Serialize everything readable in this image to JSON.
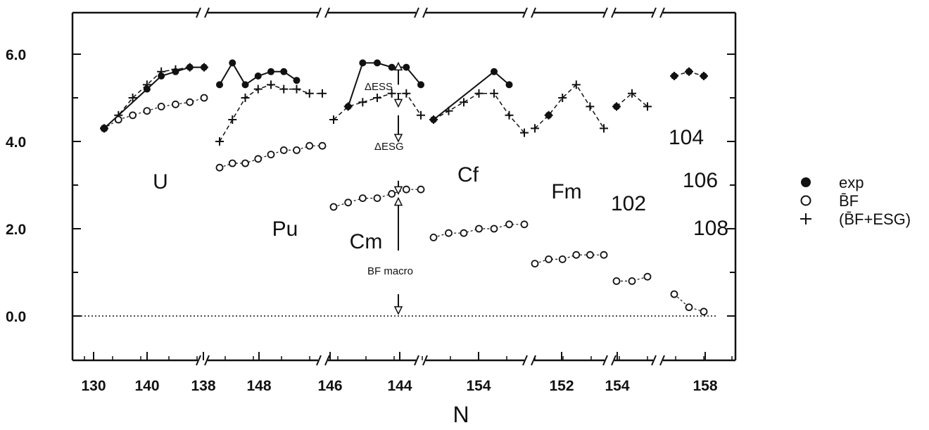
{
  "chart_data": {
    "type": "scatter",
    "title": "",
    "xlabel": "N",
    "ylabel": "",
    "ylim": [
      -1,
      7
    ],
    "y_ticks": [
      "0.0",
      "2.0",
      "4.0",
      "6.0"
    ],
    "x_tick_labels": [
      "130",
      "140",
      "138",
      "148",
      "146",
      "144",
      "154",
      "152",
      "154",
      "158"
    ],
    "legend": [
      {
        "marker": "filled-circle",
        "label": "exp"
      },
      {
        "marker": "open-circle",
        "label": "B̄F"
      },
      {
        "marker": "plus",
        "label": "(B̄F+ESG)"
      }
    ],
    "legend_position": "right",
    "element_labels": [
      "U",
      "Pu",
      "Cm",
      "Cf",
      "Fm",
      "102",
      "104",
      "106",
      "108"
    ],
    "annotations": [
      "ΔESS",
      "ΔESG",
      "BF macro"
    ],
    "reference_line": 0.0,
    "groups": [
      {
        "element": "U",
        "N": [
          134,
          136,
          138,
          140,
          142,
          144,
          146,
          148
        ],
        "exp": [
          4.3,
          null,
          null,
          5.2,
          5.5,
          5.6,
          5.7,
          5.7
        ],
        "BF": [
          4.3,
          4.5,
          4.6,
          4.7,
          4.8,
          4.85,
          4.9,
          5.0
        ],
        "BF_ESG": [
          4.3,
          4.6,
          5.0,
          5.3,
          5.6,
          5.65,
          5.7,
          5.7
        ]
      },
      {
        "element": "Pu",
        "N": [
          138,
          140,
          142,
          144,
          146,
          148,
          150,
          152,
          154
        ],
        "exp": [
          5.3,
          5.8,
          5.3,
          5.5,
          5.6,
          5.6,
          5.4,
          null,
          null
        ],
        "BF": [
          3.4,
          3.5,
          3.5,
          3.6,
          3.7,
          3.8,
          3.8,
          3.9,
          3.9
        ],
        "BF_ESG": [
          4.0,
          4.5,
          5.0,
          5.2,
          5.3,
          5.2,
          5.2,
          5.1,
          5.1
        ]
      },
      {
        "element": "Cm",
        "N": [
          142,
          144,
          146,
          148,
          150,
          152,
          154
        ],
        "exp": [
          null,
          4.8,
          5.8,
          5.8,
          5.7,
          5.7,
          5.3
        ],
        "BF": [
          2.5,
          2.6,
          2.7,
          2.7,
          2.8,
          2.9,
          2.9
        ],
        "BF_ESG": [
          4.5,
          4.8,
          4.9,
          5.0,
          5.1,
          5.1,
          4.6
        ]
      },
      {
        "element": "Cf",
        "N": [
          144,
          146,
          148,
          150,
          152,
          154,
          156
        ],
        "exp": [
          4.5,
          null,
          null,
          null,
          5.6,
          5.3,
          null
        ],
        "BF": [
          1.8,
          1.9,
          1.9,
          2.0,
          2.0,
          2.1,
          2.1
        ],
        "BF_ESG": [
          4.5,
          4.7,
          4.9,
          5.1,
          5.1,
          4.6,
          4.2
        ]
      },
      {
        "element": "Fm",
        "N": [
          148,
          150,
          152,
          154,
          156,
          158
        ],
        "exp": [
          null,
          4.6,
          null,
          null,
          null,
          null
        ],
        "BF": [
          1.2,
          1.3,
          1.3,
          1.4,
          1.4,
          1.4
        ],
        "BF_ESG": [
          4.3,
          4.6,
          5.0,
          5.3,
          4.8,
          4.3
        ]
      },
      {
        "element": "102",
        "N": [
          150,
          152,
          154
        ],
        "exp": [
          4.8,
          null,
          null
        ],
        "BF": [
          0.8,
          0.8,
          0.9
        ],
        "BF_ESG": [
          4.8,
          5.1,
          4.8
        ]
      },
      {
        "element": "104-108",
        "N": [
          154,
          156,
          158
        ],
        "exp": [
          5.5,
          5.6,
          5.5
        ],
        "BF": [
          0.5,
          0.2,
          0.1
        ],
        "BF_ESG": [
          5.5,
          5.6,
          5.5
        ]
      }
    ]
  }
}
